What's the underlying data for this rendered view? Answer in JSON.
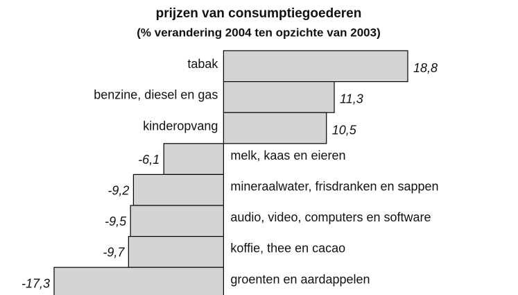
{
  "chart_data": {
    "type": "bar",
    "orientation": "horizontal",
    "title": "prijzen van consumptiegoederen",
    "subtitle": "(% verandering 2004 ten opzichte van 2003)",
    "categories": [
      "tabak",
      "benzine, diesel en gas",
      "kinderopvang",
      "melk, kaas en eieren",
      "mineraalwater, frisdranken en sappen",
      "audio, video, computers en software",
      "koffie, thee en cacao",
      "groenten en aardappelen"
    ],
    "values": [
      18.8,
      11.3,
      10.5,
      -6.1,
      -9.2,
      -9.5,
      -9.7,
      -17.3
    ],
    "value_labels": [
      "18,8",
      "11,3",
      "10,5",
      "-6,1",
      "-9,2",
      "-9,5",
      "-9,7",
      "-17,3"
    ],
    "color": "#d4d4d4"
  }
}
